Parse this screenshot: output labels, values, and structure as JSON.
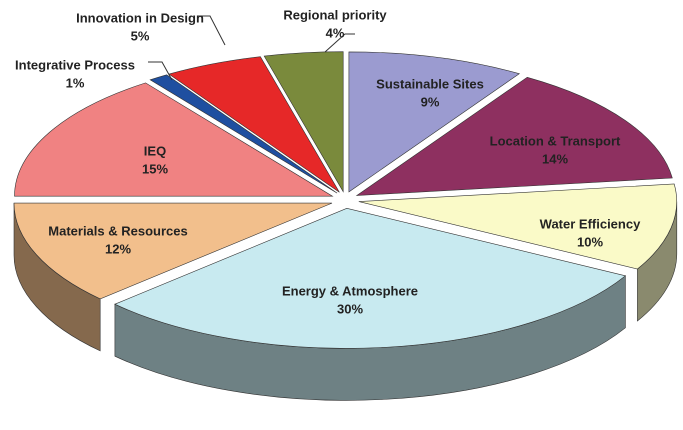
{
  "chart_data": {
    "type": "pie",
    "categories": [
      "Sustainable Sites",
      "Location & Transport",
      "Water Efficiency",
      "Energy & Atmosphere",
      "Materials & Resources",
      "IEQ",
      "Integrative Process",
      "Innovation in Design",
      "Regional priority"
    ],
    "values": [
      9,
      14,
      10,
      30,
      12,
      15,
      1,
      5,
      4
    ],
    "value_labels": [
      "9%",
      "14%",
      "10%",
      "30%",
      "12%",
      "15%",
      "1%",
      "5%",
      "4%"
    ],
    "colors": [
      "#9b9bd0",
      "#8e3060",
      "#fafac8",
      "#c8eaf0",
      "#f2bf8c",
      "#f08282",
      "#1f4fa0",
      "#e62828",
      "#7a8a3c"
    ]
  }
}
